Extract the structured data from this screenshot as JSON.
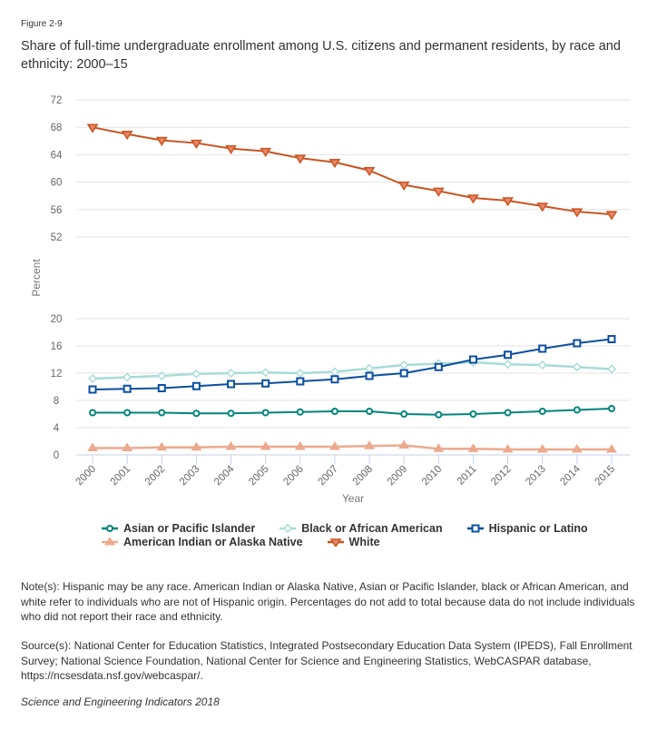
{
  "figure_label": "Figure 2-9",
  "title": "Share of full-time undergraduate enrollment among U.S. citizens and permanent residents, by race and ethnicity: 2000–15",
  "notes": "Note(s): Hispanic may be any race. American Indian or Alaska Native, Asian or Pacific Islander, black or African American, and white refer to individuals who are not of Hispanic origin. Percentages do not add to total because data do not include individuals who did not report their race and ethnicity.",
  "source": "Source(s): National Center for Education Statistics, Integrated Postsecondary Education Data System (IPEDS), Fall Enrollment Survey; National Science Foundation, National Center for Science and Engineering Statistics, WebCASPAR database, https://ncsesdata.nsf.gov/webcaspar/.",
  "publication": "Science and Engineering Indicators 2018",
  "chart_data": {
    "type": "line",
    "title": "Share of full-time undergraduate enrollment among U.S. citizens and permanent residents, by race and ethnicity: 2000–15",
    "xlabel": "Year",
    "ylabel": "Percent",
    "x": [
      "2000",
      "2001",
      "2002",
      "2003",
      "2004",
      "2005",
      "2006",
      "2007",
      "2008",
      "2009",
      "2010",
      "2011",
      "2012",
      "2013",
      "2014",
      "2015"
    ],
    "y_panels": [
      {
        "name": "upper",
        "ylim": [
          52,
          72
        ],
        "ticks": [
          "52",
          "56",
          "60",
          "64",
          "68",
          "72"
        ],
        "tick_values": [
          52,
          56,
          60,
          64,
          68,
          72
        ]
      },
      {
        "name": "lower",
        "ylim": [
          0,
          20
        ],
        "ticks": [
          "0",
          "4",
          "8",
          "12",
          "16",
          "20"
        ],
        "tick_values": [
          0,
          4,
          8,
          12,
          16,
          20
        ]
      }
    ],
    "grid": true,
    "legend_position": "bottom",
    "series": [
      {
        "name": "Asian or Pacific Islander",
        "color": "#00857a",
        "marker": "circle",
        "panel": "lower",
        "values": [
          6.2,
          6.2,
          6.2,
          6.1,
          6.1,
          6.2,
          6.3,
          6.4,
          6.4,
          6.0,
          5.9,
          6.0,
          6.2,
          6.4,
          6.6,
          6.8
        ]
      },
      {
        "name": "Black or African American",
        "color": "#a8dcd6",
        "marker": "diamond",
        "panel": "lower",
        "values": [
          11.2,
          11.4,
          11.6,
          11.9,
          12.0,
          12.1,
          12.0,
          12.2,
          12.7,
          13.2,
          13.4,
          13.6,
          13.3,
          13.2,
          12.9,
          12.6
        ]
      },
      {
        "name": "Hispanic or Latino",
        "color": "#0d4fa0",
        "marker": "square",
        "panel": "lower",
        "values": [
          9.6,
          9.7,
          9.8,
          10.1,
          10.4,
          10.5,
          10.8,
          11.1,
          11.6,
          12.0,
          12.9,
          14.0,
          14.7,
          15.6,
          16.4,
          17.0
        ]
      },
      {
        "name": "American Indian or Alaska Native",
        "color": "#eda98e",
        "marker": "triangle-up",
        "panel": "lower",
        "values": [
          1.0,
          1.0,
          1.1,
          1.1,
          1.2,
          1.2,
          1.2,
          1.2,
          1.3,
          1.4,
          0.9,
          0.9,
          0.8,
          0.8,
          0.8,
          0.8
        ]
      },
      {
        "name": "White",
        "color": "#c95421",
        "marker": "triangle-down",
        "panel": "upper",
        "values": [
          68.0,
          67.0,
          66.1,
          65.7,
          64.9,
          64.5,
          63.5,
          62.9,
          61.7,
          59.6,
          58.7,
          57.7,
          57.3,
          56.5,
          55.7,
          55.3
        ]
      }
    ]
  }
}
